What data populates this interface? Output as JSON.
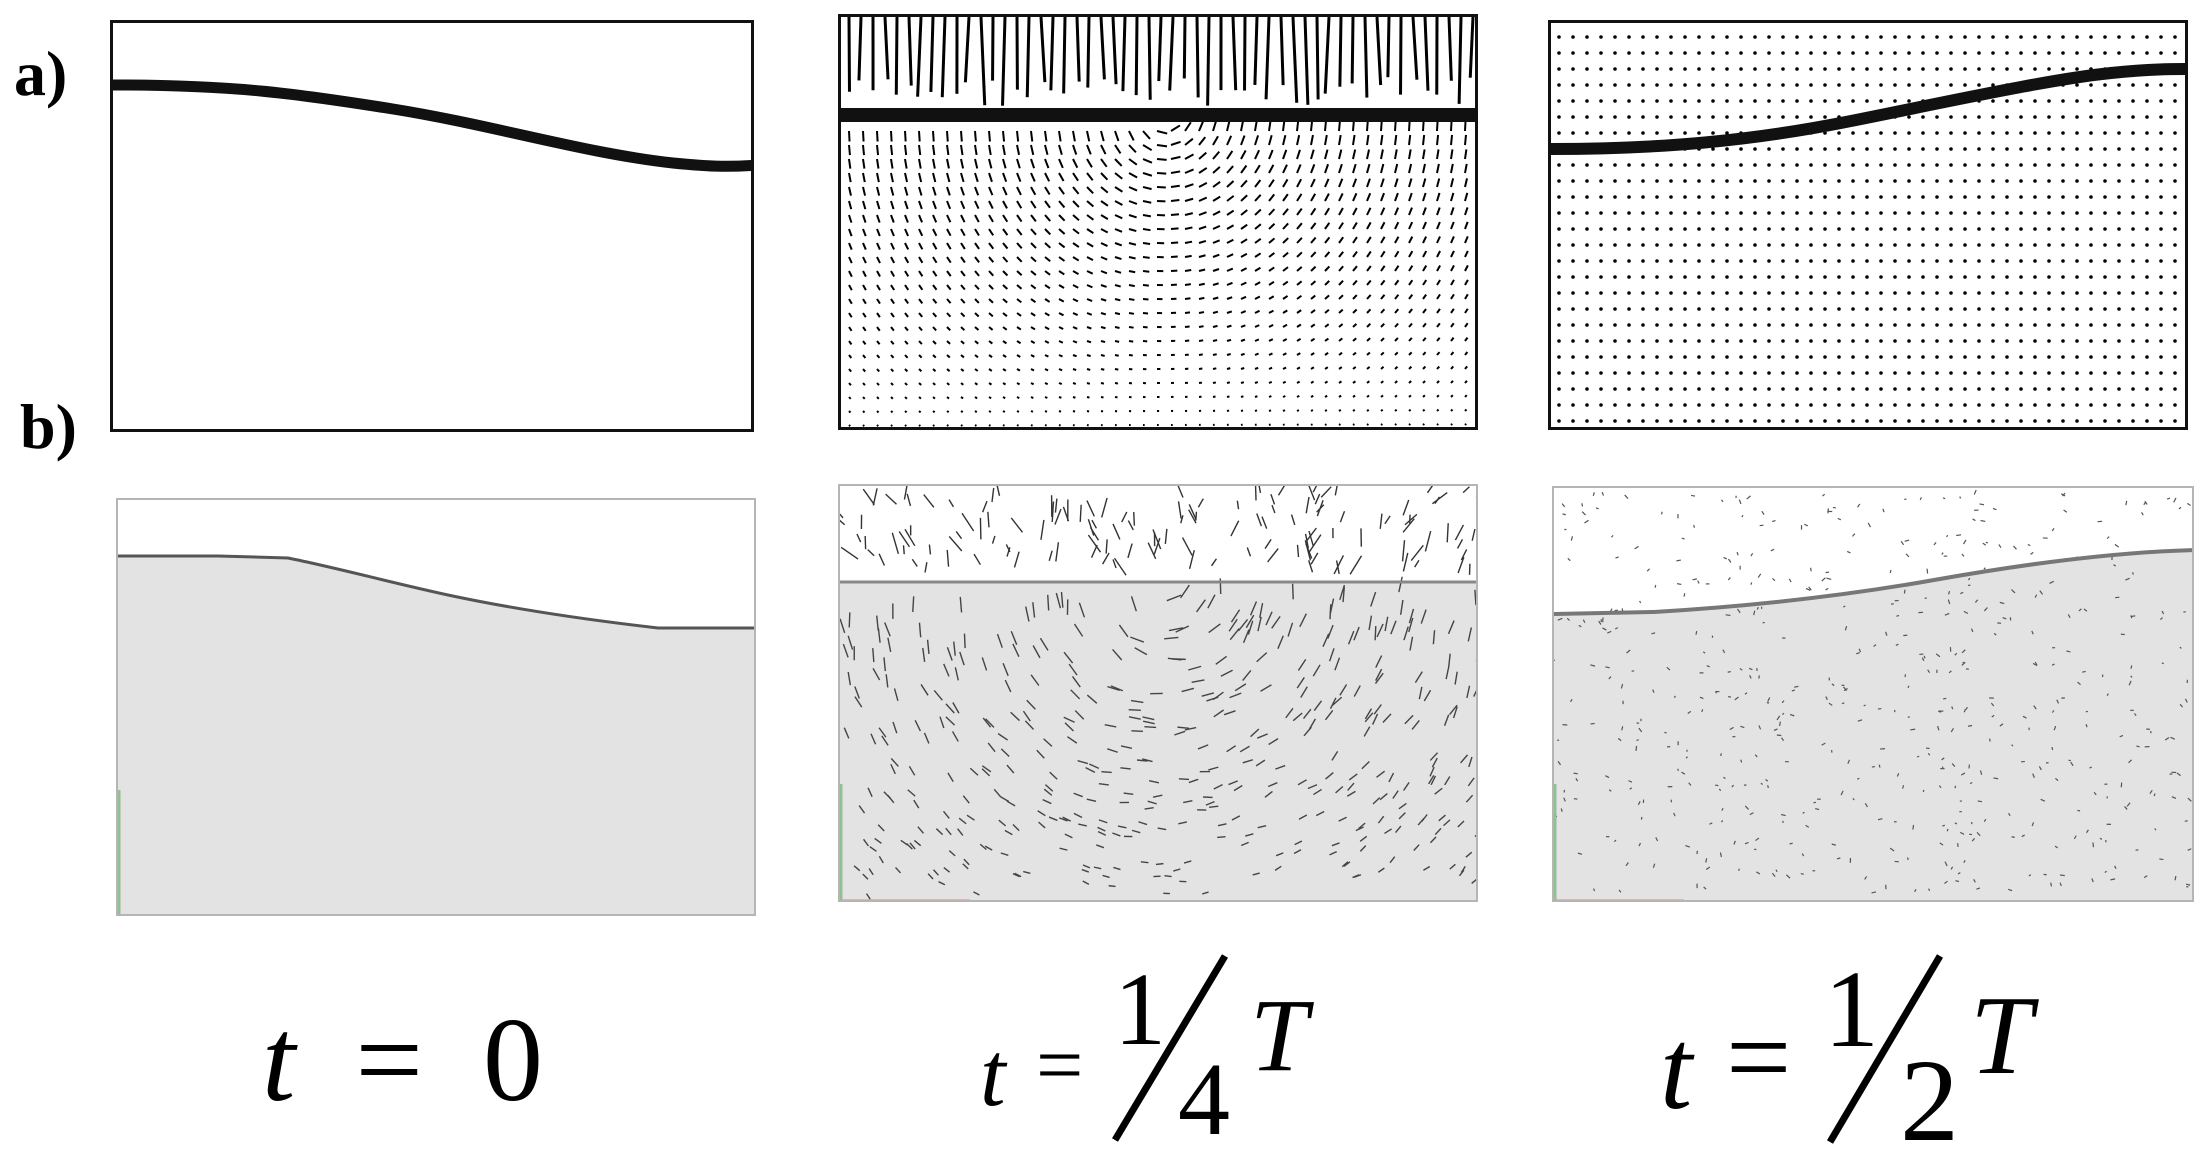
{
  "row_labels": {
    "a": "a)",
    "b": "b)"
  },
  "times": {
    "t0": {
      "var": "t",
      "eq": "=",
      "val": "0"
    },
    "t1": {
      "var": "t",
      "eq": "=",
      "num": "1",
      "den": "4",
      "T": "T"
    },
    "t2": {
      "var": "t",
      "eq": "=",
      "num": "1",
      "den": "2",
      "T": "T"
    }
  },
  "colors": {
    "surface_line": "#111111",
    "vector": "#000000",
    "liquid_fill": "#e3e3e3",
    "axis_x": "#d98a8a",
    "axis_y": "#8fc28f"
  }
}
